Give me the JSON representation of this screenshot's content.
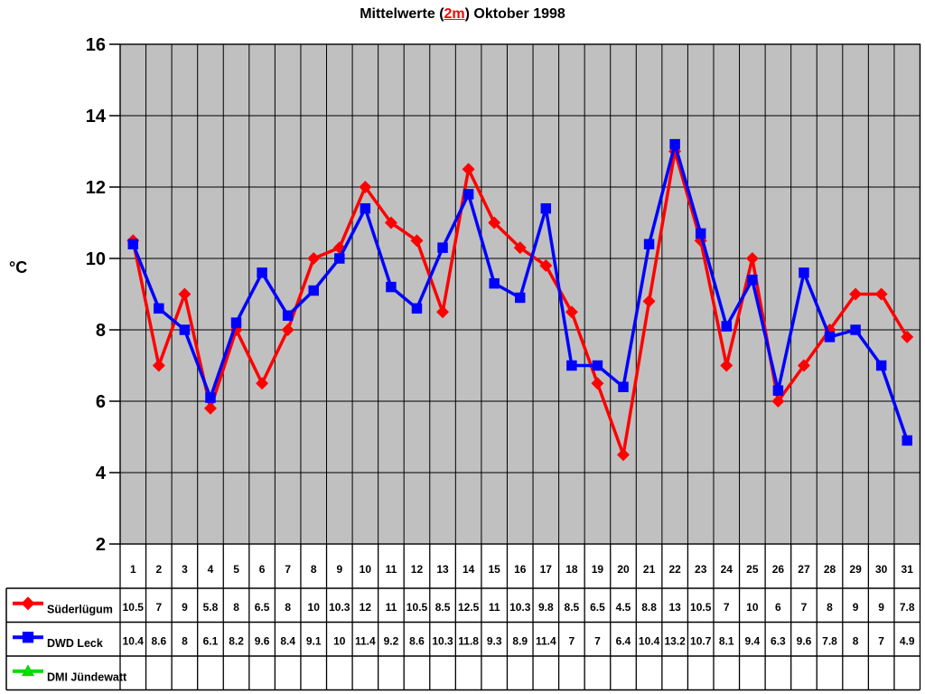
{
  "title": {
    "prefix": "Mittelwerte (",
    "highlight": "2m",
    "suffix": ") Oktober 1998"
  },
  "y_axis_title": "°C",
  "chart_data": {
    "type": "line",
    "title": "Mittelwerte (2m) Oktober 1998",
    "xlabel": "",
    "ylabel": "°C",
    "ylim": [
      2,
      16
    ],
    "ytick_step": 2,
    "grid": true,
    "plot_bg_color": "#c0c0c0",
    "grid_color": "#000000",
    "legend_position": "bottom-table",
    "categories": [
      1,
      2,
      3,
      4,
      5,
      6,
      7,
      8,
      9,
      10,
      11,
      12,
      13,
      14,
      15,
      16,
      17,
      18,
      19,
      20,
      21,
      22,
      23,
      24,
      25,
      26,
      27,
      28,
      29,
      30,
      31
    ],
    "series": [
      {
        "name": "Süderlügum",
        "color": "#ff0000",
        "marker": "diamond",
        "values": [
          10.5,
          7,
          9,
          5.8,
          8,
          6.5,
          8,
          10,
          10.3,
          12,
          11,
          10.5,
          8.5,
          12.5,
          11,
          10.3,
          9.8,
          8.5,
          6.5,
          4.5,
          8.8,
          13,
          10.5,
          7,
          10,
          6,
          7,
          8,
          9,
          9,
          7.8
        ]
      },
      {
        "name": "DWD Leck",
        "color": "#0000ff",
        "marker": "square",
        "values": [
          10.4,
          8.6,
          8,
          6.1,
          8.2,
          9.6,
          8.4,
          9.1,
          10,
          11.4,
          9.2,
          8.6,
          10.3,
          11.8,
          9.3,
          8.9,
          11.4,
          7,
          7,
          6.4,
          10.4,
          13.2,
          10.7,
          8.1,
          9.4,
          6.3,
          9.6,
          7.8,
          8,
          7,
          4.9
        ]
      },
      {
        "name": "DMI Jündewatt",
        "color": "#00dc00",
        "marker": "triangle",
        "values": []
      }
    ]
  }
}
